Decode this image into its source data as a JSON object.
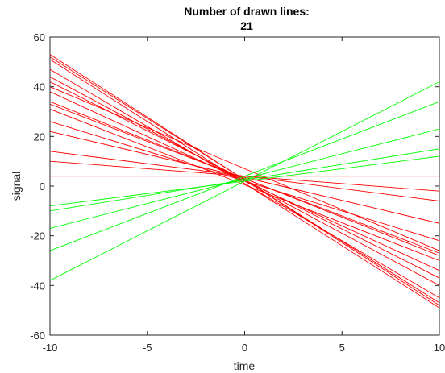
{
  "chart_data": {
    "type": "line",
    "title": [
      "Number of drawn lines:",
      "21"
    ],
    "xlabel": "time",
    "ylabel": "signal",
    "xlim": [
      -10,
      10
    ],
    "ylim": [
      -60,
      60
    ],
    "xticks": [
      -10,
      -5,
      0,
      5,
      10
    ],
    "yticks": [
      -60,
      -40,
      -20,
      0,
      20,
      40,
      60
    ],
    "grid": false,
    "colors": {
      "red": "#ff0000",
      "green": "#00ff00"
    },
    "series": [
      {
        "color": "red",
        "x": [
          -10,
          10
        ],
        "y": [
          53,
          -48
        ]
      },
      {
        "color": "red",
        "x": [
          -10,
          10
        ],
        "y": [
          52,
          -47
        ]
      },
      {
        "color": "red",
        "x": [
          -10,
          10
        ],
        "y": [
          51,
          -49
        ]
      },
      {
        "color": "red",
        "x": [
          -10,
          10
        ],
        "y": [
          44,
          -40
        ]
      },
      {
        "color": "red",
        "x": [
          -10,
          10
        ],
        "y": [
          42,
          -37
        ]
      },
      {
        "color": "red",
        "x": [
          -10,
          10
        ],
        "y": [
          34,
          -28
        ]
      },
      {
        "color": "red",
        "x": [
          -10,
          10
        ],
        "y": [
          33,
          -27
        ]
      },
      {
        "color": "red",
        "x": [
          -10,
          10
        ],
        "y": [
          31,
          -30
        ]
      },
      {
        "color": "red",
        "x": [
          -10,
          10
        ],
        "y": [
          38,
          -34
        ]
      },
      {
        "color": "red",
        "x": [
          -10,
          10
        ],
        "y": [
          22,
          -15
        ]
      },
      {
        "color": "red",
        "x": [
          -10,
          10
        ],
        "y": [
          14,
          -6
        ]
      },
      {
        "color": "red",
        "x": [
          -10,
          10
        ],
        "y": [
          10,
          -2
        ]
      },
      {
        "color": "red",
        "x": [
          -10,
          10
        ],
        "y": [
          4,
          4
        ]
      },
      {
        "color": "red",
        "x": [
          -10,
          10
        ],
        "y": [
          47,
          -45
        ]
      },
      {
        "color": "red",
        "x": [
          -10,
          10
        ],
        "y": [
          40,
          -26
        ]
      },
      {
        "color": "red",
        "x": [
          -10,
          10
        ],
        "y": [
          26,
          -22
        ]
      },
      {
        "color": "green",
        "x": [
          -10,
          10
        ],
        "y": [
          -38,
          42
        ]
      },
      {
        "color": "green",
        "x": [
          -10,
          10
        ],
        "y": [
          -26,
          34
        ]
      },
      {
        "color": "green",
        "x": [
          -10,
          10
        ],
        "y": [
          -17,
          23
        ]
      },
      {
        "color": "green",
        "x": [
          -10,
          10
        ],
        "y": [
          -8,
          12
        ]
      },
      {
        "color": "green",
        "x": [
          -10,
          10
        ],
        "y": [
          -10,
          15
        ]
      }
    ]
  }
}
